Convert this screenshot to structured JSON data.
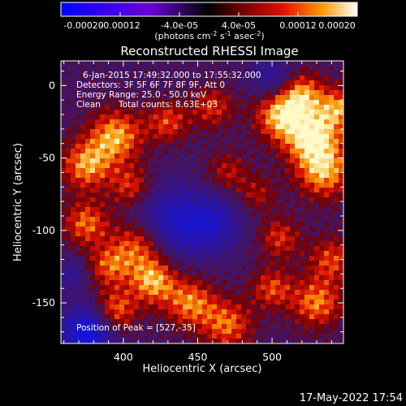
{
  "chart_data": {
    "type": "heatmap",
    "title": "Reconstructed RHESSI Image",
    "xlabel": "Heliocentric X (arcsec)",
    "ylabel": "Heliocentric Y (arcsec)",
    "xlim": [
      358,
      548
    ],
    "ylim": [
      -178,
      17
    ],
    "xticks": [
      400,
      450,
      500
    ],
    "yticks": [
      0,
      -50,
      -100,
      -150
    ],
    "colorbar": {
      "range": [
        -0.0002,
        0.0002
      ],
      "tick_values": [
        -0.0002,
        -0.00012,
        -4e-05,
        4e-05,
        0.00012,
        0.0002
      ],
      "tick_labels": [
        "-0.00020",
        "-0.00012",
        "-4.0e-05",
        "4.0e-05",
        "0.00012",
        "0.00020"
      ],
      "unit_label": "(photons cm^-2 s^-1 asec^-2)"
    },
    "annotations": {
      "time_range": "6-Jan-2015 17:49:32.000 to 17:55:32.000",
      "detectors": "Detectors: 3F 5F 6F 7F 8F 9F, Att 0",
      "energy_range": "Energy Range: 25.0 - 50.0 keV",
      "method": "Clean",
      "total_counts": "Total counts: 8.63E+03",
      "peak": "Position of Peak = [527,-35]"
    },
    "peak_position": [
      527,
      -35
    ],
    "grid": false
  },
  "footer": {
    "timestamp": "17-May-2022 17:54"
  }
}
